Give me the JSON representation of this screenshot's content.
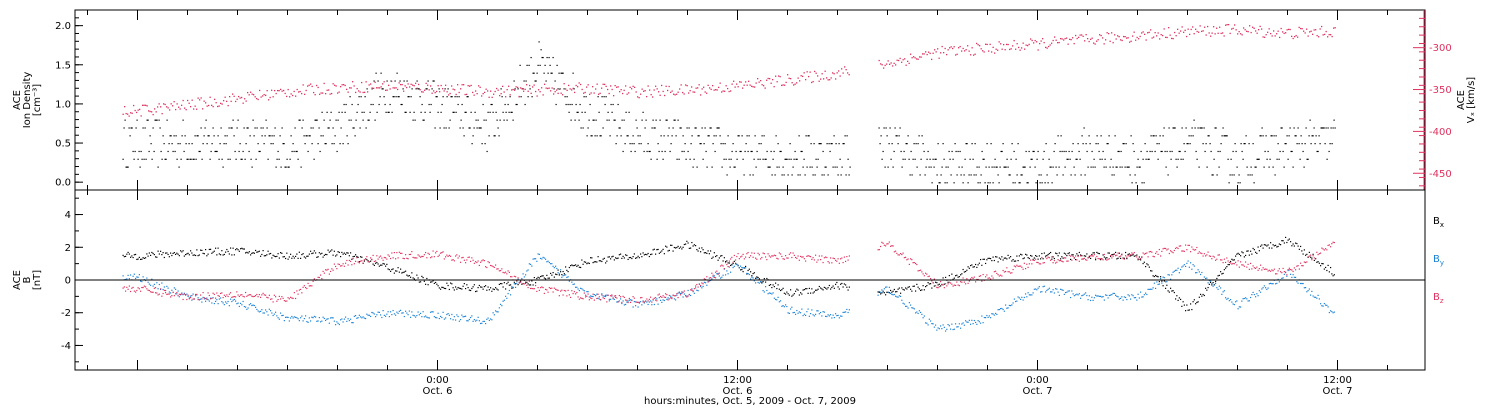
{
  "colors": {
    "black": "#000000",
    "pink": "#e0325f",
    "blue": "#1a82d6",
    "axis": "#000000"
  },
  "chart_data": [
    {
      "type": "scatter",
      "panel": "top",
      "ylabel_lines": [
        "ACE",
        "Ion Density",
        "[cm⁻³]"
      ],
      "ylim": [
        -0.1,
        2.2
      ],
      "yticks": [
        0.0,
        0.5,
        1.0,
        1.5,
        2.0
      ],
      "ytick_labels": [
        "0.0",
        "0.5",
        "1.0",
        "1.5",
        "2.0"
      ],
      "y2label_lines": [
        "ACE",
        "Vₓ [km/s]"
      ],
      "y2lim": [
        -470,
        -255
      ],
      "y2ticks": [
        -450,
        -400,
        -350,
        -300
      ],
      "y2tick_labels": [
        "-450",
        "-400",
        "-350",
        "-300"
      ],
      "series": [
        {
          "name": "Ion Density",
          "color": "black",
          "axis": "left",
          "x": [
            -12,
            -10,
            -8,
            -6,
            -4,
            -2,
            0,
            2,
            4,
            6,
            8,
            10,
            12,
            14,
            16,
            18,
            20,
            22,
            24,
            26,
            28,
            30,
            32,
            34,
            36
          ],
          "y": [
            0.5,
            0.5,
            0.55,
            0.45,
            0.7,
            1.2,
            1.0,
            0.7,
            1.5,
            0.9,
            0.6,
            0.5,
            0.35,
            0.35,
            0.35,
            0.5,
            0.2,
            0.25,
            0.2,
            0.4,
            0.3,
            0.5,
            0.3,
            0.45,
            0.55
          ]
        },
        {
          "name": "Vₓ",
          "color": "pink",
          "axis": "right",
          "x": [
            -12,
            -10,
            -8,
            -6,
            -4,
            -2,
            0,
            2,
            4,
            6,
            8,
            10,
            12,
            14,
            16,
            18,
            20,
            22,
            24,
            26,
            28,
            30,
            32,
            34,
            36
          ],
          "y": [
            -375,
            -368,
            -360,
            -352,
            -347,
            -345,
            -348,
            -352,
            -350,
            -348,
            -352,
            -350,
            -345,
            -338,
            -330,
            -318,
            -305,
            -300,
            -295,
            -290,
            -285,
            -280,
            -278,
            -282,
            -280
          ]
        }
      ],
      "xlim": [
        -14.5,
        39.5
      ],
      "xticks": [
        0,
        12,
        24,
        36
      ],
      "grid": false
    },
    {
      "type": "scatter",
      "panel": "bottom",
      "ylabel_lines": [
        "ACE",
        "B",
        "[nT]"
      ],
      "ylim": [
        -5.5,
        5.5
      ],
      "yticks": [
        -4,
        -2,
        0,
        2,
        4
      ],
      "ytick_labels": [
        "-4",
        "-2",
        "0",
        "2",
        "4"
      ],
      "zero_line": true,
      "series": [
        {
          "name": "Bₓ",
          "color": "black",
          "x": [
            -12,
            -10,
            -8,
            -6,
            -4,
            -2,
            0,
            2,
            4,
            6,
            8,
            10,
            12,
            14,
            16,
            18,
            20,
            22,
            24,
            26,
            28,
            30,
            32,
            34,
            36
          ],
          "y": [
            1.5,
            1.7,
            1.8,
            1.5,
            1.7,
            0.8,
            -0.3,
            -0.5,
            0,
            1.2,
            1.5,
            2.2,
            0.9,
            -0.8,
            -0.3,
            -0.8,
            -0.2,
            1.3,
            1.5,
            1.5,
            1.5,
            -1.8,
            1.5,
            2.5,
            0.3
          ]
        },
        {
          "name": "Bᵧ",
          "color": "blue",
          "x": [
            -12,
            -10,
            -8,
            -6,
            -4,
            -2,
            0,
            2,
            4,
            6,
            8,
            10,
            12,
            14,
            16,
            18,
            20,
            22,
            24,
            26,
            28,
            30,
            32,
            34,
            36
          ],
          "y": [
            0.2,
            -1.0,
            -1.4,
            -2.3,
            -2.5,
            -2.0,
            -2.1,
            -2.5,
            1.5,
            -0.8,
            -1.5,
            -0.8,
            1.0,
            -1.8,
            -2.2,
            -0.5,
            -3.0,
            -2.3,
            -0.5,
            -1.0,
            -1.0,
            1.0,
            -1.5,
            0.5,
            -2.2
          ]
        },
        {
          "name": "B_z",
          "color": "pink",
          "x": [
            -12,
            -10,
            -8,
            -6,
            -4,
            -2,
            0,
            2,
            4,
            6,
            8,
            10,
            12,
            14,
            16,
            18,
            20,
            22,
            24,
            26,
            28,
            30,
            32,
            34,
            36
          ],
          "y": [
            -0.5,
            -1.0,
            -0.8,
            -1.2,
            1.0,
            1.5,
            1.6,
            1.0,
            -0.5,
            -1.0,
            -1.2,
            -0.8,
            1.5,
            1.5,
            1.2,
            2.3,
            -0.3,
            0.2,
            1.2,
            1.4,
            1.5,
            2.0,
            1.0,
            0.5,
            2.4
          ]
        }
      ],
      "legend": [
        {
          "label": "B",
          "sub": "x",
          "color": "black"
        },
        {
          "label": "B",
          "sub": "y",
          "color": "blue"
        },
        {
          "label": "B",
          "sub": "z",
          "color": "pink"
        }
      ],
      "xlim": [
        -14.5,
        39.5
      ],
      "xticks": [
        0,
        12,
        24,
        36
      ],
      "grid": false
    }
  ],
  "xtick_labels": [
    {
      "time": "0:00",
      "date": "Oct. 6"
    },
    {
      "time": "12:00",
      "date": "Oct. 6"
    },
    {
      "time": "0:00",
      "date": "Oct. 7"
    },
    {
      "time": "12:00",
      "date": "Oct. 7"
    }
  ],
  "xlabel": "hours:minutes, Oct.  5, 2009 - Oct.  7, 2009"
}
